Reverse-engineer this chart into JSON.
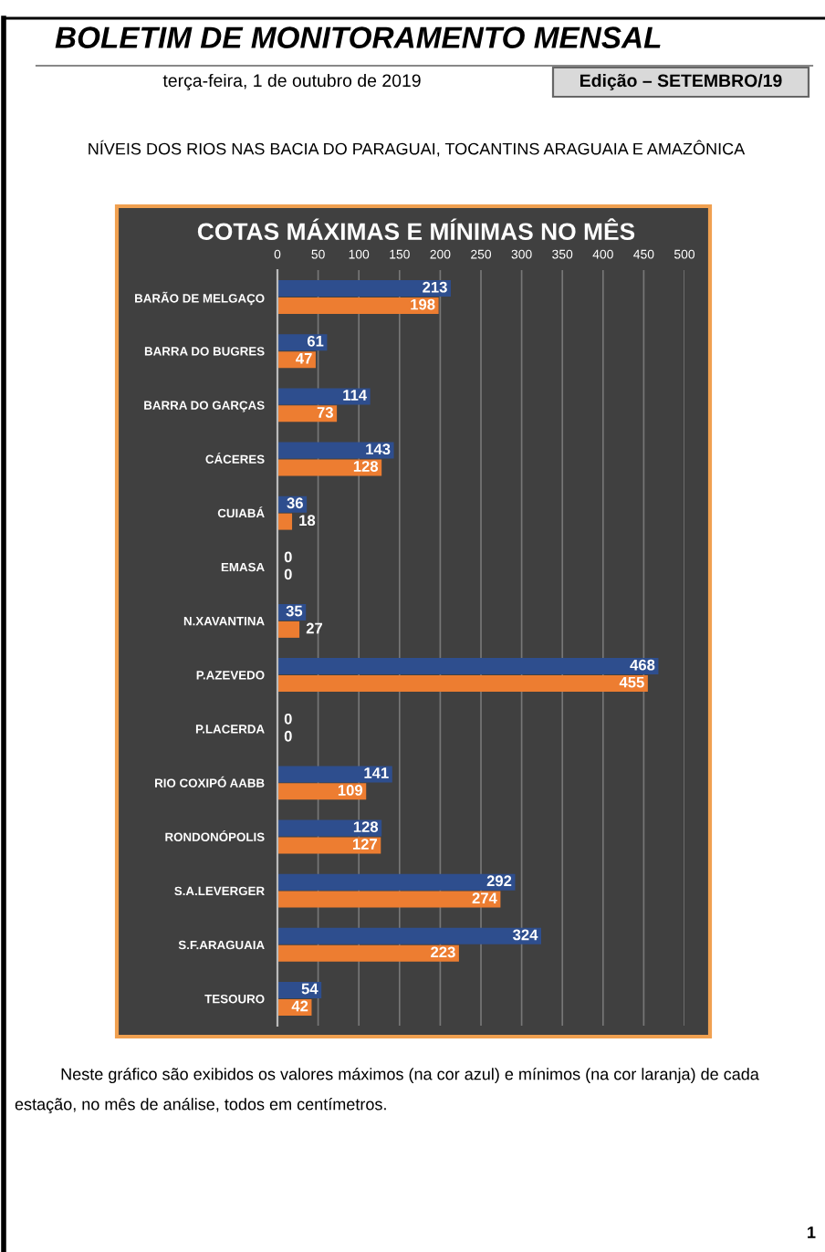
{
  "chart_data": {
    "type": "bar",
    "orientation": "horizontal",
    "title": "COTAS MÁXIMAS E MÍNIMAS NO MÊS",
    "categories": [
      "BARÃO DE MELGAÇO",
      "BARRA DO BUGRES",
      "BARRA DO GARÇAS",
      "CÁCERES",
      "CUIABÁ",
      "EMASA",
      "N.XAVANTINA",
      "P.AZEVEDO",
      "P.LACERDA",
      "RIO COXIPÓ AABB",
      "RONDONÓPOLIS",
      "S.A.LEVERGER",
      "S.F.ARAGUAIA",
      "TESOURO"
    ],
    "series": [
      {
        "color": "#2e4e8e",
        "values": [
          213,
          61,
          114,
          143,
          36,
          0,
          35,
          468,
          0,
          141,
          128,
          292,
          324,
          54
        ]
      },
      {
        "color": "#ed7d31",
        "values": [
          198,
          47,
          73,
          128,
          18,
          0,
          27,
          455,
          0,
          109,
          127,
          274,
          223,
          42
        ]
      }
    ],
    "xlim": [
      0,
      500
    ],
    "xticks": [
      0,
      50,
      100,
      150,
      200,
      250,
      300,
      350,
      400,
      450,
      500
    ],
    "grid": "x",
    "data_labels": true,
    "legend": false,
    "annotations": [
      "BOLETIM DE MONITORAMENTO MENSAL",
      "terça-feira, 1 de outubro de 2019",
      "Edição – SETEMBRO/19",
      "NÍVEIS DOS RIOS NAS BACIA DO PARAGUAI, TOCANTINS ARAGUAIA E AMAZÔNICA",
      "Neste gráfico são exibidos os valores máximos (na cor azul) e mínimos (na cor laranja) de cada estação, no mês de análise, todos em centímetros.",
      "1"
    ]
  }
}
